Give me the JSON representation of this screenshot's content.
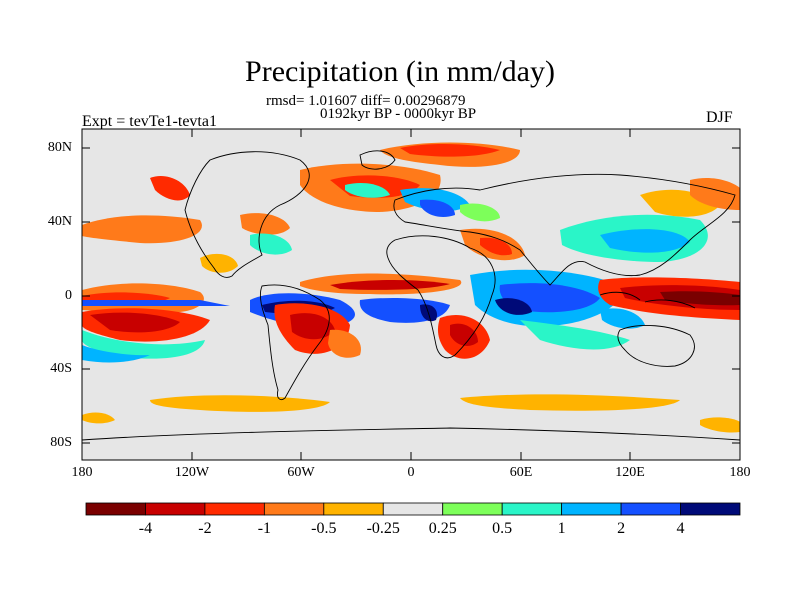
{
  "title": "Precipitation (in mm/day)",
  "stats_line1": "rmsd= 1.01607 diff= 0.00296879",
  "stats_line2": "0192kyr BP - 0000kyr BP",
  "left_label": "Expt = tevTe1-tevta1",
  "right_label": "DJF",
  "lat_ticks": [
    "80N",
    "40N",
    "0",
    "40S",
    "80S"
  ],
  "lon_ticks": [
    "180",
    "120W",
    "60W",
    "0",
    "60E",
    "120E",
    "180"
  ],
  "colorbar": {
    "labels": [
      "-4",
      "-2",
      "-1",
      "-0.5",
      "-0.25",
      "0.25",
      "0.5",
      "1",
      "2",
      "4"
    ],
    "colors": [
      "#7a0000",
      "#c80000",
      "#ff2a00",
      "#ff7a1a",
      "#ffb300",
      "#e6e6e6",
      "#7dff5a",
      "#2af5c8",
      "#00b4ff",
      "#1450ff",
      "#000a78"
    ]
  },
  "colors": {
    "background": "#e6e6e6",
    "coast": "#000000"
  }
}
